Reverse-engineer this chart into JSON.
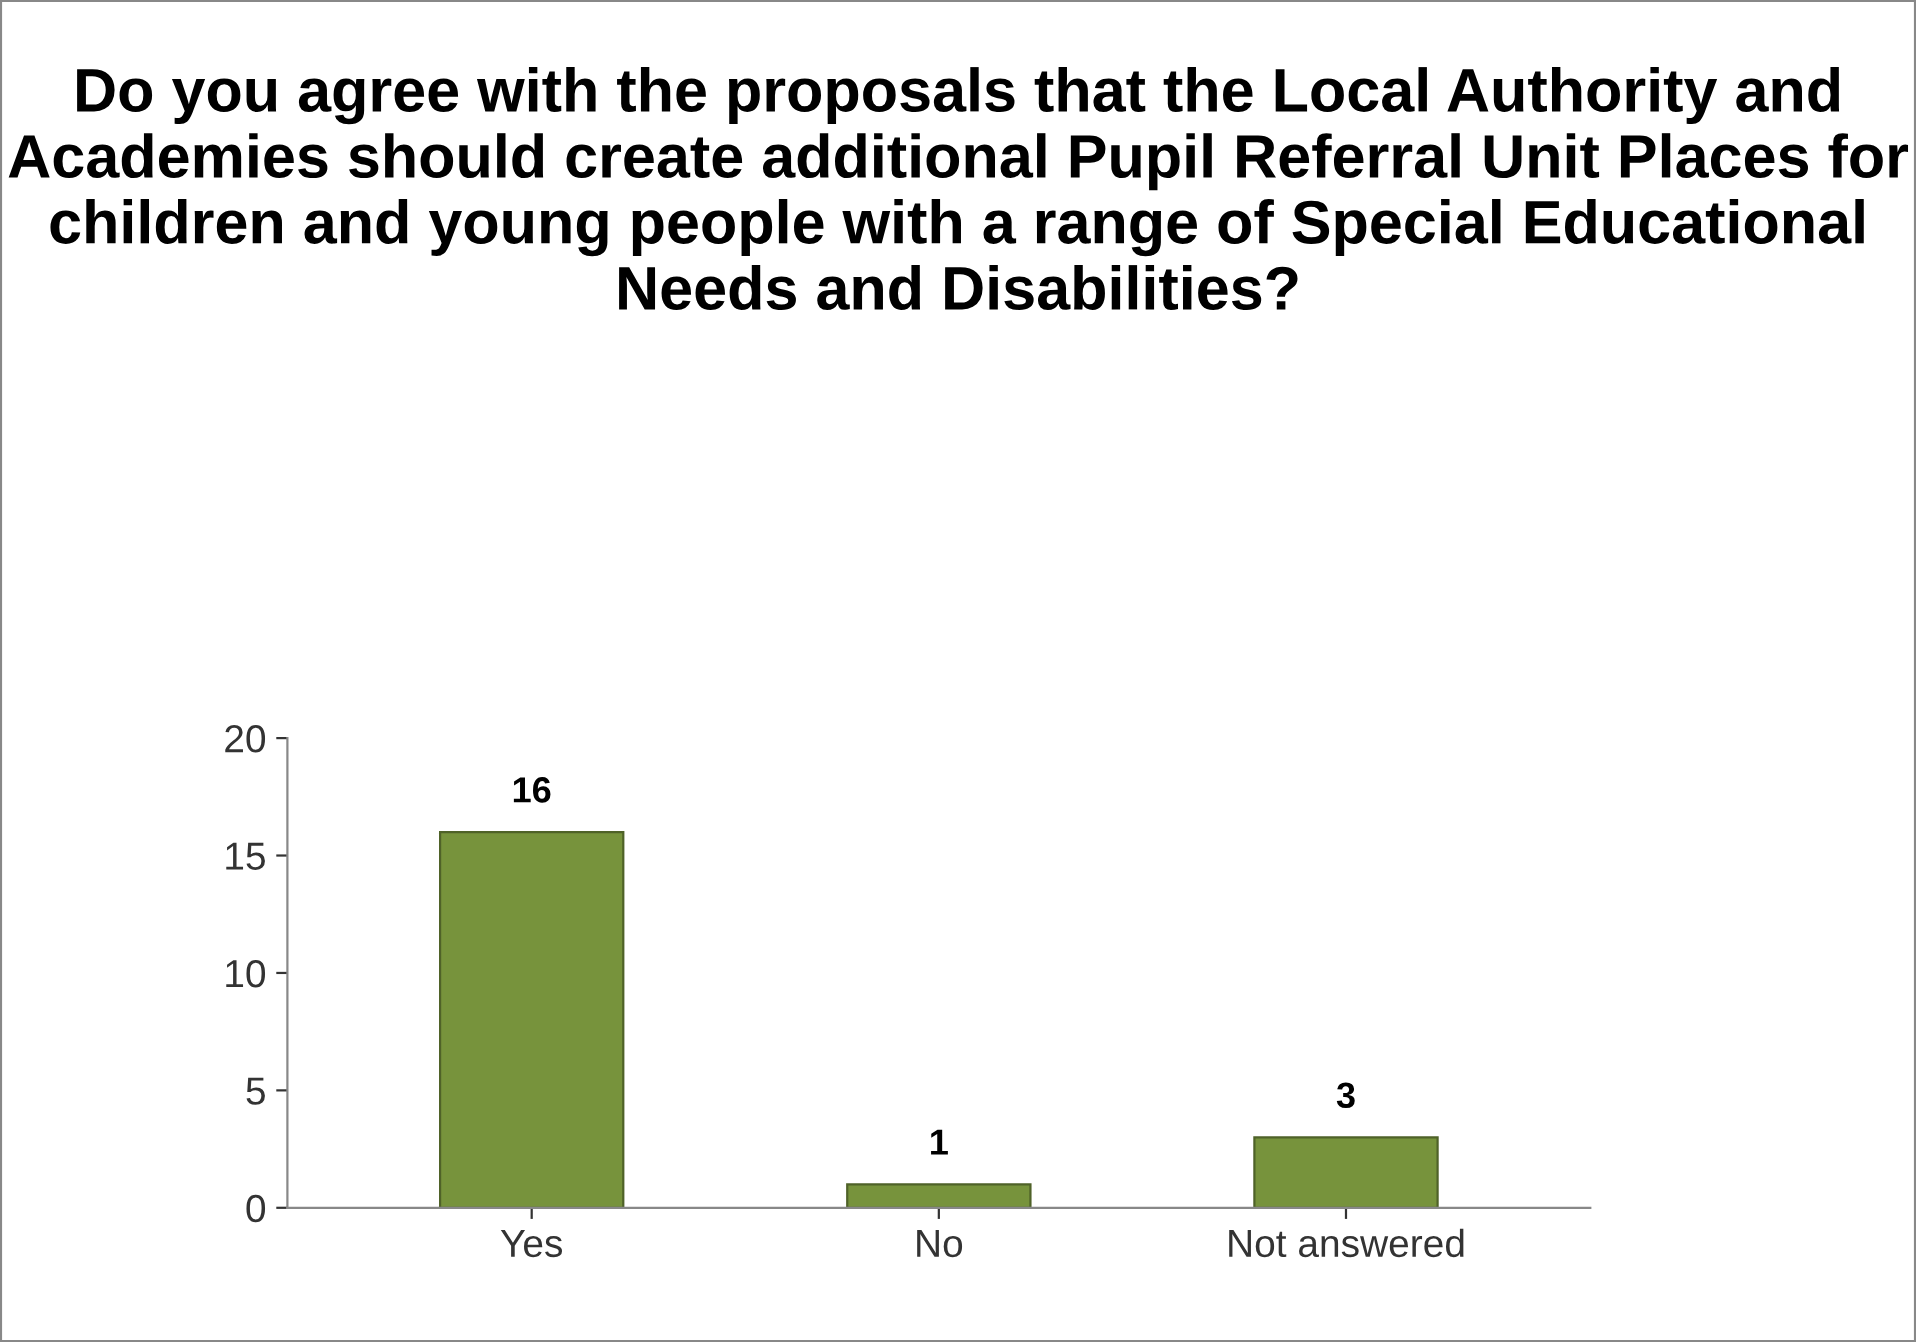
{
  "chart_data": {
    "type": "bar",
    "title": "Do you agree with the proposals that the Local Authority and Academies should create additional Pupil Referral Unit Places for children and young people with a range of Special Educational Needs and Disabilities?",
    "categories": [
      "Yes",
      "No",
      "Not answered"
    ],
    "values": [
      16,
      1,
      3
    ],
    "color": "#77933c",
    "ylim": [
      0,
      20
    ],
    "yticks": [
      0,
      5,
      10,
      15,
      20
    ],
    "data_labels": true,
    "grid": false,
    "legend": false
  }
}
